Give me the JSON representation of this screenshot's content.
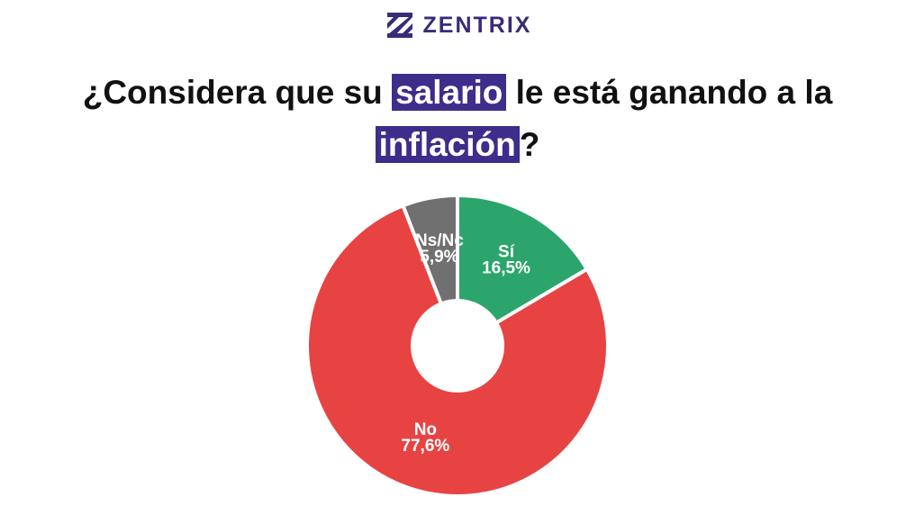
{
  "brand": "ZENTRIX",
  "chart_data": {
    "type": "donut",
    "title_lines": [
      [
        "¿Considera que su ",
        "salario",
        " le está ganando a la"
      ],
      [
        "inflación",
        "?"
      ]
    ],
    "categories": [
      "Sí",
      "No",
      "Ns/Nc"
    ],
    "values": [
      16.5,
      77.6,
      5.9
    ],
    "value_labels": [
      "16,5%",
      "77,6%",
      "5,9%"
    ],
    "colors": [
      "#2ba56b",
      "#e84343",
      "#707070"
    ]
  }
}
